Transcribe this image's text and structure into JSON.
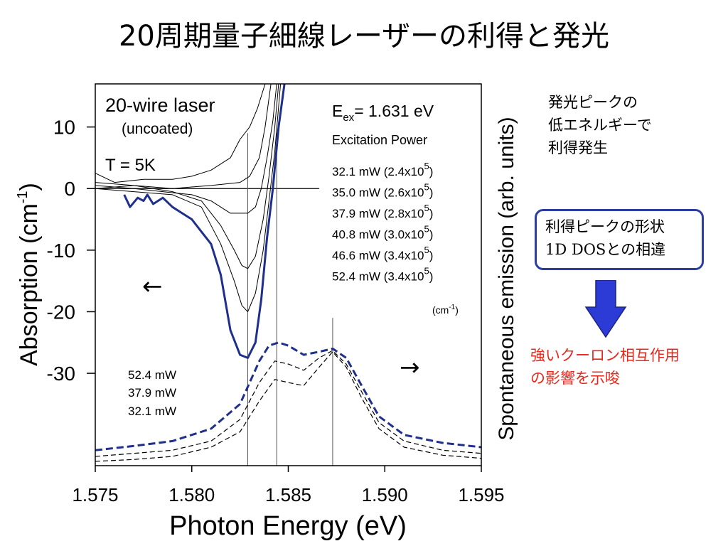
{
  "slide": {
    "title": "20周期量子細線レーザーの利得と発光",
    "note1": [
      "発光ピークの",
      "低エネルギーで",
      "利得発生"
    ],
    "box": [
      "利得ピークの形状",
      "1D DOSとの相違"
    ],
    "conclusion": [
      "強いクーロン相互作用",
      "の影響を示唆"
    ],
    "arrow_color": "#2c3ad6"
  },
  "chart_data": {
    "type": "line",
    "xlabel": "Photon Energy (eV)",
    "ylabel_left": "Absorption  (cm-1)",
    "ylabel_right": "Spontaneous emission (arb. units)",
    "xlim": [
      1.575,
      1.595
    ],
    "ylim": [
      -45,
      17
    ],
    "x_ticks": [
      "1.575",
      "1.580",
      "1.585",
      "1.590",
      "1.595"
    ],
    "y_ticks": [
      {
        "value": 10,
        "label": "10"
      },
      {
        "value": 0,
        "label": "0"
      },
      {
        "value": -10,
        "label": "-10"
      },
      {
        "value": -20,
        "label": "-20"
      },
      {
        "value": -30,
        "label": "-30"
      }
    ],
    "zero_line_x_end": 1.5866,
    "vlines": [
      {
        "x": 1.5829,
        "y_top": 9
      },
      {
        "x": 1.5844,
        "y_top": 9
      },
      {
        "x": 1.5873,
        "y_top": -21
      }
    ],
    "annotations": {
      "laser": "20-wire laser",
      "coating": "(uncoated)",
      "temp": "T = 5K",
      "eex_prefix": "E",
      "eex_sub": "ex",
      "eex_suffix": "= 1.631 eV",
      "power_header": "Excitation Power",
      "power_entries": [
        {
          "mw": "32.1 mW (2.4x10",
          "exp": "5",
          "close": ")"
        },
        {
          "mw": "35.0 mW (2.6x10",
          "exp": "5",
          "close": ")"
        },
        {
          "mw": "37.9 mW (2.8x10",
          "exp": "5",
          "close": ")"
        },
        {
          "mw": "40.8 mW (3.0x10",
          "exp": "5",
          "close": ")"
        },
        {
          "mw": "46.6 mW (3.4x10",
          "exp": "5",
          "close": ")"
        },
        {
          "mw": "52.4 mW (3.4x10",
          "exp": "5",
          "close": ")"
        }
      ],
      "unit_base": "(cm",
      "unit_exp": "-1",
      "unit_close": ")",
      "emission_labels": [
        "52.4 mW",
        "37.9 mW",
        "32.1 mW"
      ],
      "left_arrow": "←",
      "right_arrow": "→"
    },
    "series": [
      {
        "name": "52.4 mW",
        "axis": "absorption",
        "color": "#1f2f8c",
        "width": 3,
        "points": [
          [
            1.5765,
            -1
          ],
          [
            1.5768,
            -3
          ],
          [
            1.5772,
            -1.5
          ],
          [
            1.5775,
            -2
          ],
          [
            1.5777,
            -1
          ],
          [
            1.578,
            -2.5
          ],
          [
            1.5785,
            -1.5
          ],
          [
            1.579,
            -3
          ],
          [
            1.5795,
            -4
          ],
          [
            1.58,
            -5
          ],
          [
            1.5805,
            -7
          ],
          [
            1.581,
            -9
          ],
          [
            1.5815,
            -14
          ],
          [
            1.582,
            -23
          ],
          [
            1.5825,
            -27
          ],
          [
            1.5829,
            -27.5
          ],
          [
            1.5833,
            -25
          ],
          [
            1.5836,
            -18
          ],
          [
            1.5839,
            -8
          ],
          [
            1.5842,
            0
          ],
          [
            1.5845,
            10
          ],
          [
            1.5848,
            17
          ]
        ]
      },
      {
        "name": "46.6 mW",
        "axis": "absorption",
        "color": "#000000",
        "width": 1,
        "points": [
          [
            1.575,
            0
          ],
          [
            1.577,
            -0.5
          ],
          [
            1.579,
            -1
          ],
          [
            1.5805,
            -3
          ],
          [
            1.5815,
            -9
          ],
          [
            1.5822,
            -15
          ],
          [
            1.5826,
            -19
          ],
          [
            1.5829,
            -20
          ],
          [
            1.5833,
            -17
          ],
          [
            1.5837,
            -10
          ],
          [
            1.584,
            -2
          ],
          [
            1.5843,
            6
          ],
          [
            1.5846,
            17
          ]
        ]
      },
      {
        "name": "40.8 mW",
        "axis": "absorption",
        "color": "#000000",
        "width": 1,
        "points": [
          [
            1.575,
            1
          ],
          [
            1.577,
            0.5
          ],
          [
            1.579,
            -0.5
          ],
          [
            1.5805,
            -2
          ],
          [
            1.5815,
            -6
          ],
          [
            1.5822,
            -10
          ],
          [
            1.5826,
            -12.5
          ],
          [
            1.5829,
            -13
          ],
          [
            1.5833,
            -11
          ],
          [
            1.5837,
            -5
          ],
          [
            1.584,
            2
          ],
          [
            1.5843,
            10
          ],
          [
            1.5845,
            17
          ]
        ]
      },
      {
        "name": "37.9 mW",
        "axis": "absorption",
        "color": "#000000",
        "width": 1,
        "points": [
          [
            1.575,
            0.5
          ],
          [
            1.577,
            0
          ],
          [
            1.5785,
            -0.5
          ],
          [
            1.58,
            -1
          ],
          [
            1.581,
            -2
          ],
          [
            1.582,
            -4
          ],
          [
            1.5829,
            -4
          ],
          [
            1.5833,
            -3
          ],
          [
            1.5836,
            0
          ],
          [
            1.5839,
            5
          ],
          [
            1.5842,
            11
          ],
          [
            1.5844,
            17
          ]
        ]
      },
      {
        "name": "35.0 mW",
        "axis": "absorption",
        "color": "#000000",
        "width": 1,
        "points": [
          [
            1.575,
            0
          ],
          [
            1.577,
            0.5
          ],
          [
            1.579,
            0
          ],
          [
            1.581,
            0.5
          ],
          [
            1.5825,
            1
          ],
          [
            1.583,
            2
          ],
          [
            1.5835,
            5
          ],
          [
            1.5838,
            10
          ],
          [
            1.5841,
            17
          ]
        ]
      },
      {
        "name": "32.1 mW",
        "axis": "absorption",
        "color": "#000000",
        "width": 1,
        "points": [
          [
            1.575,
            2.5
          ],
          [
            1.576,
            1
          ],
          [
            1.5775,
            1.5
          ],
          [
            1.579,
            1.5
          ],
          [
            1.58,
            2
          ],
          [
            1.581,
            3
          ],
          [
            1.582,
            5
          ],
          [
            1.5825,
            8
          ],
          [
            1.583,
            10
          ],
          [
            1.5834,
            13
          ],
          [
            1.5838,
            17
          ]
        ]
      },
      {
        "name": "52.4 mW",
        "axis": "emission",
        "color": "#1f2f8c",
        "width": 3,
        "dash": "10,5",
        "points": [
          [
            1.575,
            -42.5
          ],
          [
            1.577,
            -41.8
          ],
          [
            1.579,
            -41
          ],
          [
            1.581,
            -39
          ],
          [
            1.5825,
            -35
          ],
          [
            1.5835,
            -28
          ],
          [
            1.584,
            -25.5
          ],
          [
            1.5845,
            -25
          ],
          [
            1.585,
            -25.5
          ],
          [
            1.5858,
            -27
          ],
          [
            1.5866,
            -26.5
          ],
          [
            1.5873,
            -26
          ],
          [
            1.588,
            -27.5
          ],
          [
            1.5888,
            -32
          ],
          [
            1.5897,
            -37
          ],
          [
            1.591,
            -40
          ],
          [
            1.593,
            -41.3
          ],
          [
            1.595,
            -42
          ]
        ]
      },
      {
        "name": "37.9 mW",
        "axis": "emission",
        "color": "#000000",
        "width": 1.2,
        "dash": "7,4",
        "points": [
          [
            1.575,
            -43.5
          ],
          [
            1.577,
            -43
          ],
          [
            1.579,
            -42.5
          ],
          [
            1.581,
            -41
          ],
          [
            1.5825,
            -37.5
          ],
          [
            1.5835,
            -31.5
          ],
          [
            1.5843,
            -28
          ],
          [
            1.585,
            -28.5
          ],
          [
            1.5858,
            -29.5
          ],
          [
            1.5866,
            -27.5
          ],
          [
            1.5873,
            -26.3
          ],
          [
            1.588,
            -28.5
          ],
          [
            1.5888,
            -33
          ],
          [
            1.5897,
            -38
          ],
          [
            1.591,
            -41
          ],
          [
            1.593,
            -42.5
          ],
          [
            1.595,
            -43
          ]
        ]
      },
      {
        "name": "32.1 mW",
        "axis": "emission",
        "color": "#000000",
        "width": 1.2,
        "dash": "7,4",
        "points": [
          [
            1.575,
            -44.3
          ],
          [
            1.577,
            -44
          ],
          [
            1.579,
            -43.5
          ],
          [
            1.581,
            -42
          ],
          [
            1.5825,
            -39.5
          ],
          [
            1.5835,
            -34.5
          ],
          [
            1.5843,
            -31
          ],
          [
            1.585,
            -31.5
          ],
          [
            1.5858,
            -32
          ],
          [
            1.5866,
            -29
          ],
          [
            1.5873,
            -26.5
          ],
          [
            1.588,
            -29
          ],
          [
            1.5888,
            -34
          ],
          [
            1.5897,
            -39
          ],
          [
            1.591,
            -42
          ],
          [
            1.593,
            -43.3
          ],
          [
            1.595,
            -43.8
          ]
        ]
      }
    ]
  }
}
